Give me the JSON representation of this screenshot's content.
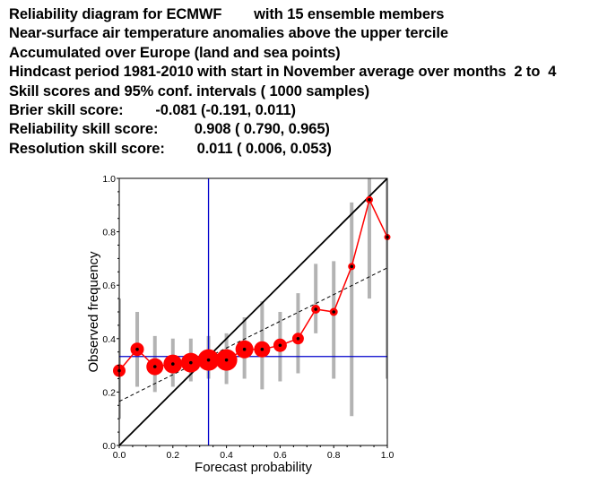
{
  "header": {
    "lines": [
      "Reliability diagram for ECMWF        with 15 ensemble members",
      "Near-surface air temperature anomalies above the upper tercile",
      "Accumulated over Europe (land and sea points)",
      "Hindcast period 1981-2010 with start in November average over months  2 to  4",
      "Skill scores and 95% conf. intervals ( 1000 samples)",
      "Brier skill score:        -0.081 (-0.191, 0.011)",
      "Reliability skill score:         0.908 ( 0.790, 0.965)",
      "Resolution skill score:        0.011 ( 0.006, 0.053)"
    ]
  },
  "chart_data": {
    "type": "scatter",
    "xlabel": "Forecast probability",
    "ylabel": "Observed frequency",
    "xlim": [
      0,
      1
    ],
    "ylim": [
      0,
      1
    ],
    "xticks": [
      "0.0",
      "0.2",
      "0.4",
      "0.6",
      "0.8",
      "1.0"
    ],
    "yticks": [
      "0.0",
      "0.2",
      "0.4",
      "0.6",
      "0.8",
      "1.0"
    ],
    "climatology": 0.333,
    "diagonal": [
      [
        0,
        0
      ],
      [
        1,
        1
      ]
    ],
    "reliability_fit": [
      [
        0,
        0.165
      ],
      [
        1,
        0.665
      ]
    ],
    "points": [
      {
        "x": 0.0,
        "y": 0.28,
        "size": 1.0,
        "ci": [
          0.1,
          0.55
        ]
      },
      {
        "x": 0.067,
        "y": 0.36,
        "size": 1.1,
        "ci": [
          0.22,
          0.5
        ]
      },
      {
        "x": 0.133,
        "y": 0.295,
        "size": 1.5,
        "ci": [
          0.2,
          0.41
        ]
      },
      {
        "x": 0.2,
        "y": 0.305,
        "size": 1.7,
        "ci": [
          0.22,
          0.4
        ]
      },
      {
        "x": 0.267,
        "y": 0.31,
        "size": 1.8,
        "ci": [
          0.24,
          0.4
        ]
      },
      {
        "x": 0.333,
        "y": 0.32,
        "size": 2.0,
        "ci": [
          0.25,
          0.41
        ]
      },
      {
        "x": 0.4,
        "y": 0.32,
        "size": 2.0,
        "ci": [
          0.23,
          0.42
        ]
      },
      {
        "x": 0.467,
        "y": 0.36,
        "size": 1.6,
        "ci": [
          0.25,
          0.48
        ]
      },
      {
        "x": 0.533,
        "y": 0.36,
        "size": 1.4,
        "ci": [
          0.21,
          0.54
        ]
      },
      {
        "x": 0.6,
        "y": 0.375,
        "size": 1.1,
        "ci": [
          0.24,
          0.5
        ]
      },
      {
        "x": 0.667,
        "y": 0.4,
        "size": 0.9,
        "ci": [
          0.27,
          0.57
        ]
      },
      {
        "x": 0.733,
        "y": 0.51,
        "size": 0.6,
        "ci": [
          0.42,
          0.68
        ]
      },
      {
        "x": 0.8,
        "y": 0.5,
        "size": 0.5,
        "ci": [
          0.25,
          0.69
        ]
      },
      {
        "x": 0.867,
        "y": 0.67,
        "size": 0.4,
        "ci": [
          0.11,
          0.91
        ]
      },
      {
        "x": 0.933,
        "y": 0.92,
        "size": 0.4,
        "ci": [
          0.55,
          1.0
        ]
      },
      {
        "x": 1.0,
        "y": 0.78,
        "size": 0.3,
        "ci": [
          0.25,
          1.0
        ]
      }
    ],
    "colors": {
      "line": "#ff0000",
      "marker": "#ff0000",
      "center": "#000000",
      "ci": "#b3b3b3",
      "climatology": "#0000cc",
      "diagonal": "#000000",
      "fit": "#000000"
    },
    "grid": false
  }
}
